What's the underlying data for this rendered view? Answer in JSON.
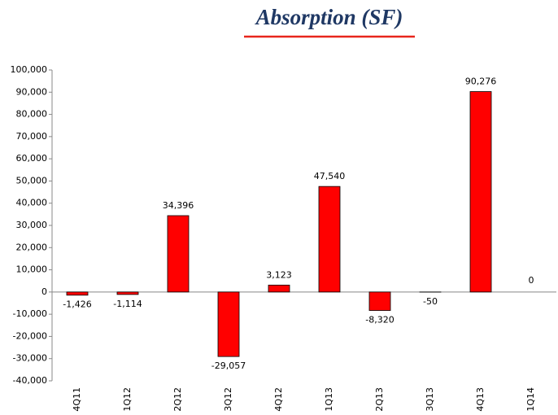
{
  "chart_data": {
    "type": "bar",
    "title": "Absorption (SF)",
    "categories": [
      "4Q11",
      "1Q12",
      "2Q12",
      "3Q12",
      "4Q12",
      "1Q13",
      "2Q13",
      "3Q13",
      "4Q13",
      "1Q14"
    ],
    "values": [
      -1426,
      -1114,
      34396,
      -29057,
      3123,
      47540,
      -8320,
      -50,
      90276,
      0
    ],
    "value_labels": [
      "-1,426",
      "-1,114",
      "34,396",
      "-29,057",
      "3,123",
      "47,540",
      "-8,320",
      "-50",
      "90,276",
      "0"
    ],
    "color": "#ff0000",
    "ylim": [
      -40000,
      100000
    ],
    "yticks": [
      {
        "value": -40000,
        "label": "-40,000"
      },
      {
        "value": -30000,
        "label": "-30,000"
      },
      {
        "value": -20000,
        "label": "-20,000"
      },
      {
        "value": -10000,
        "label": "-10,000"
      },
      0,
      {
        "value": 10000,
        "label": "10,000"
      },
      {
        "value": 20000,
        "label": "20,000"
      },
      {
        "value": 30000,
        "label": "30,000"
      },
      {
        "value": 40000,
        "label": "40,000"
      },
      {
        "value": 50000,
        "label": "50,000"
      },
      {
        "value": 60000,
        "label": "60,000"
      },
      {
        "value": 70000,
        "label": "70,000"
      },
      {
        "value": 80000,
        "label": "80,000"
      },
      {
        "value": 90000,
        "label": "90,000"
      },
      {
        "value": 100000,
        "label": "100,000"
      }
    ],
    "grid": false
  }
}
